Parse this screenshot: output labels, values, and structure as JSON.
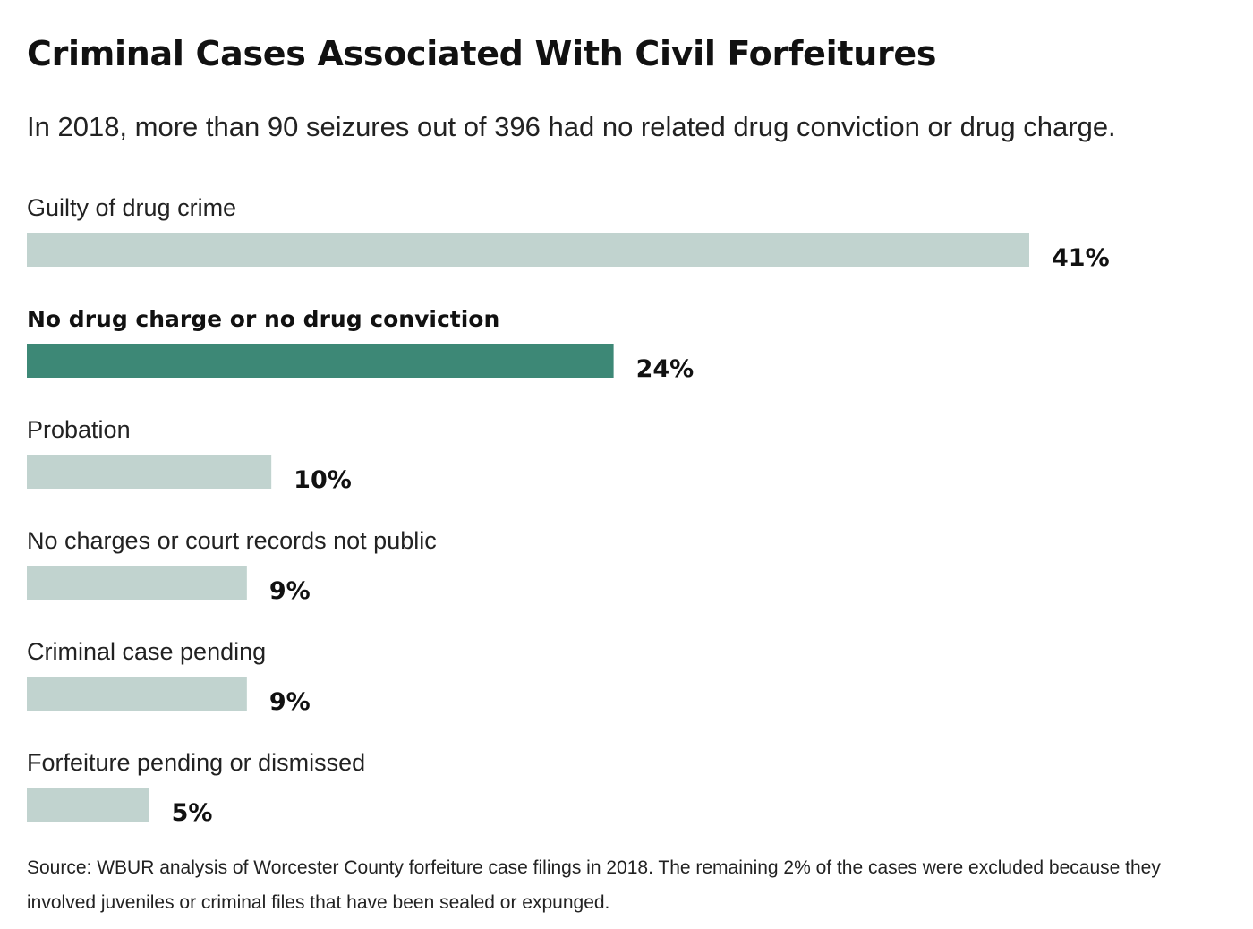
{
  "title": "Criminal Cases Associated With Civil Forfeitures",
  "subtitle": "In 2018, more than 90 seizures out of 396 had no related drug conviction or drug charge.",
  "source": "Source: WBUR analysis of Worcester County forfeiture case filings in 2018. The remaining 2% of the cases were excluded because they involved juveniles or criminal files that have been sealed or expunged.",
  "colors": {
    "bar": "#c1d3cf",
    "highlight": "#3d8876",
    "text": "#111111"
  },
  "chart_data": {
    "type": "bar",
    "orientation": "horizontal",
    "categories": [
      "Guilty of drug crime",
      "No drug charge or no drug conviction",
      "Probation",
      "No charges or court records not public",
      "Criminal case pending",
      "Forfeiture pending or dismissed"
    ],
    "values": [
      41,
      24,
      10,
      9,
      9,
      5
    ],
    "value_labels": [
      "41%",
      "24%",
      "10%",
      "9%",
      "9%",
      "5%"
    ],
    "highlighted_index": 1,
    "unit": "%",
    "xlim": [
      0,
      41
    ],
    "grid": false,
    "legend": "none"
  }
}
